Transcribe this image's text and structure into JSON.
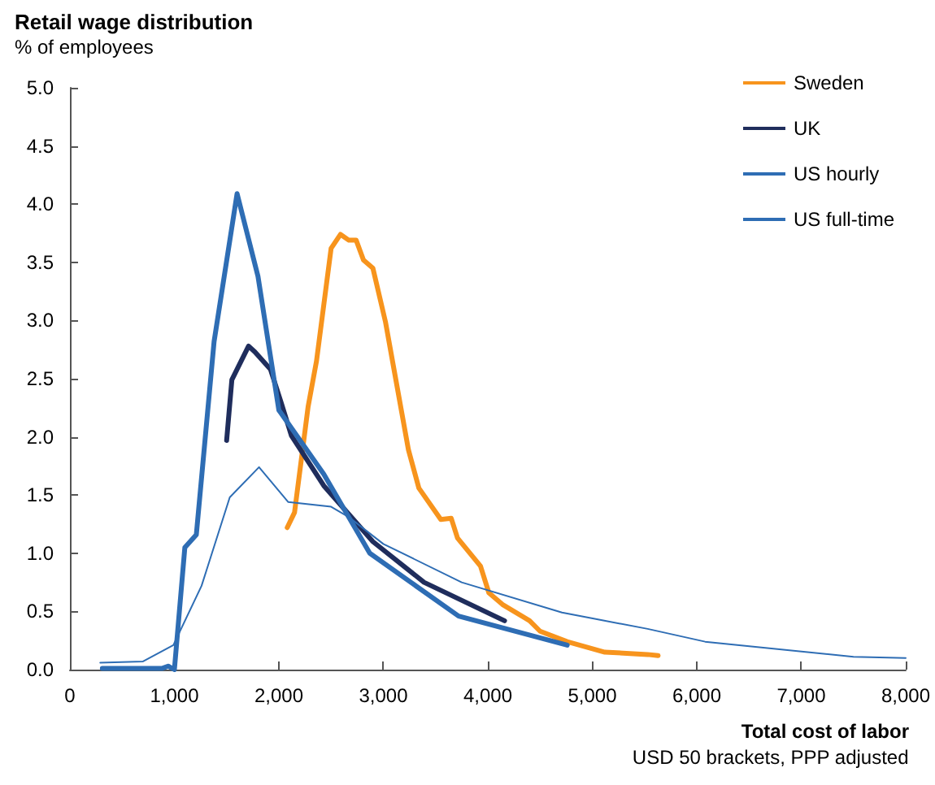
{
  "chart_data": {
    "type": "line",
    "title": "Retail wage distribution",
    "ylabel": "% of employees",
    "xlabel": "Total cost of labor",
    "annotations": [
      "USD 50 brackets, PPP adjusted"
    ],
    "xlim": [
      0,
      8000
    ],
    "ylim": [
      0,
      5
    ],
    "xticks": [
      {
        "value": 0,
        "label": "0"
      },
      {
        "value": 1000,
        "label": "1,000"
      },
      {
        "value": 2000,
        "label": "2,000"
      },
      {
        "value": 3000,
        "label": "3,000"
      },
      {
        "value": 4000,
        "label": "4,000"
      },
      {
        "value": 5000,
        "label": "5,000"
      },
      {
        "value": 6000,
        "label": "6,000"
      },
      {
        "value": 7000,
        "label": "7,000"
      },
      {
        "value": 8000,
        "label": "8,000"
      }
    ],
    "yticks": [
      {
        "value": 0,
        "label": "0.0"
      },
      {
        "value": 0.5,
        "label": "0.5"
      },
      {
        "value": 1,
        "label": "1.0"
      },
      {
        "value": 1.5,
        "label": "1.5"
      },
      {
        "value": 2,
        "label": "2.0"
      },
      {
        "value": 2.5,
        "label": "2.5"
      },
      {
        "value": 3,
        "label": "3.0"
      },
      {
        "value": 3.5,
        "label": "3.5"
      },
      {
        "value": 4,
        "label": "4.0"
      },
      {
        "value": 4.5,
        "label": "4.5"
      },
      {
        "value": 5,
        "label": "5.0"
      }
    ],
    "grid": false,
    "legend": "top right",
    "marker": "none",
    "line_style": "solid",
    "series": [
      {
        "name": "Sweden",
        "color": "#f7941d",
        "x": [
          2080,
          2150,
          2280,
          2360,
          2500,
          2590,
          2670,
          2740,
          2810,
          2900,
          3020,
          3100,
          3240,
          3340,
          3550,
          3650,
          3710,
          3930,
          4010,
          4140,
          4400,
          4500,
          4760,
          5120,
          5530,
          5630
        ],
        "values": [
          1.22,
          1.35,
          2.26,
          2.65,
          3.62,
          3.74,
          3.69,
          3.69,
          3.52,
          3.45,
          2.99,
          2.59,
          1.89,
          1.56,
          1.29,
          1.3,
          1.13,
          0.89,
          0.66,
          0.56,
          0.42,
          0.33,
          0.24,
          0.15,
          0.13,
          0.12
        ]
      },
      {
        "name": "UK",
        "color": "#1f2d5c",
        "x": [
          1500,
          1550,
          1710,
          1770,
          1920,
          2020,
          2120,
          2430,
          2900,
          3390,
          4160
        ],
        "values": [
          1.97,
          2.49,
          2.78,
          2.73,
          2.58,
          2.3,
          2.01,
          1.58,
          1.1,
          0.75,
          0.42
        ]
      },
      {
        "name": "US hourly",
        "color": "#2e6db4",
        "x": [
          310,
          880,
          940,
          1000,
          1100,
          1210,
          1380,
          1600,
          1800,
          2000,
          2430,
          2870,
          3720,
          4760
        ],
        "values": [
          0.01,
          0.01,
          0.03,
          0.0,
          1.05,
          1.16,
          2.82,
          4.09,
          3.38,
          2.23,
          1.68,
          1.0,
          0.46,
          0.21
        ]
      },
      {
        "name": "US full-time",
        "color": "#2e6db4",
        "x": [
          290,
          700,
          990,
          1260,
          1530,
          1810,
          2090,
          2500,
          2670,
          3000,
          3750,
          4710,
          5530,
          6080,
          7500,
          8000
        ],
        "values": [
          0.06,
          0.07,
          0.21,
          0.72,
          1.48,
          1.74,
          1.44,
          1.4,
          1.31,
          1.08,
          0.75,
          0.49,
          0.35,
          0.24,
          0.11,
          0.1
        ]
      }
    ]
  }
}
